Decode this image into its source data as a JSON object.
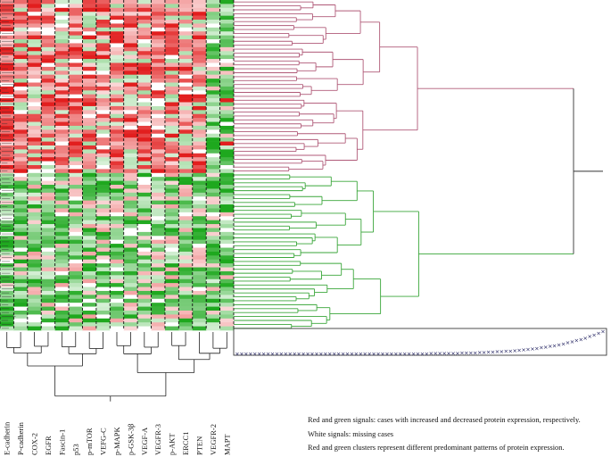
{
  "chart_data": {
    "type": "heatmap",
    "title": "",
    "subtitle": "",
    "columns": [
      "E-cadherin",
      "P-cadherin",
      "COX-2",
      "EGFR",
      "Fascin-1",
      "p53",
      "p-mTOR",
      "VEFG-C",
      "p-MAPK",
      "p-GSK-3β",
      "VEGF-A",
      "VEGFR-3",
      "p-AKT",
      "ERCC1",
      "PTEN",
      "VEGFR-2",
      "MAPT"
    ],
    "n_cases": 84,
    "row_clusters": [
      {
        "name": "red cluster",
        "cases": 44,
        "color": "#b05a78"
      },
      {
        "name": "green cluster",
        "cases": 40,
        "color": "#3aa63a"
      }
    ],
    "value_scale": {
      "min": -1,
      "max": 1,
      "low_color": "#1fa81f",
      "high_color": "#e21f1f",
      "missing_color": "#ffffff"
    },
    "column_dendrogram_order": [
      "E-cadherin",
      "P-cadherin",
      "COX-2",
      "EGFR",
      "Fascin-1",
      "p53",
      "p-mTOR",
      "VEFG-C",
      "p-MAPK",
      "p-GSK-3β",
      "VEGF-A",
      "VEGFR-3",
      "p-AKT",
      "ERCC1",
      "PTEN",
      "VEGFR-2",
      "MAPT"
    ],
    "merge_distance_profile": {
      "n": 84,
      "min": 0.0,
      "max": 1.0,
      "description": "sorted merge heights shown in inset"
    },
    "legend": [
      "Red and green signals: cases with increased and decreased protein expression, respectively.",
      "White signals: missing cases",
      "Red and green clusters represent different predominant patterns of protein expression."
    ]
  },
  "colors": {
    "red_cluster_line": "#b05a78",
    "green_cluster_line": "#3aa63a",
    "axis_line": "#222222",
    "inset_marker": "#1a1a5a"
  }
}
